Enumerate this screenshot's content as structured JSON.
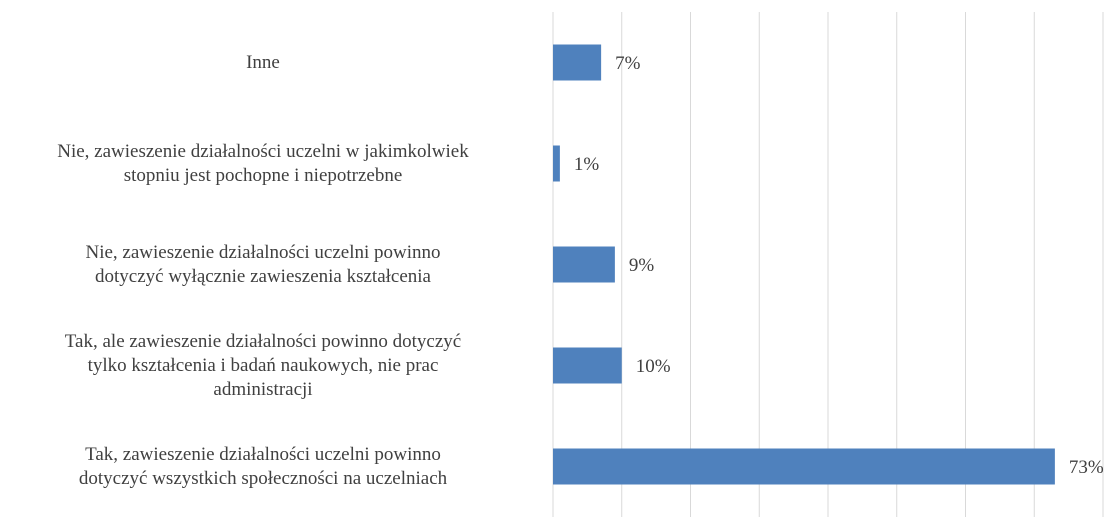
{
  "chart_data": {
    "type": "barh",
    "categories": [
      "Inne",
      "Nie, zawieszenie działalności uczelni w jakimkolwiek\nstopniu jest pochopne i niepotrzebne",
      "Nie, zawieszenie działalności uczelni powinno\ndotyczyć wyłącznie zawieszenia kształcenia",
      "Tak, ale zawieszenie działalności powinno dotyczyć\ntylko kształcenia i badań naukowych, nie prac\nadministracji",
      "Tak, zawieszenie działalności uczelni powinno\ndotyczyć wszystkich społeczności na uczelniach"
    ],
    "values": [
      7,
      1,
      9,
      10,
      73
    ],
    "value_labels": [
      "7%",
      "1%",
      "9%",
      "10%",
      "73%"
    ],
    "color": "#4f81bd",
    "xlim": [
      0,
      80
    ],
    "xticks": [
      0,
      10,
      20,
      30,
      40,
      50,
      60,
      70,
      80
    ],
    "grid": true
  }
}
